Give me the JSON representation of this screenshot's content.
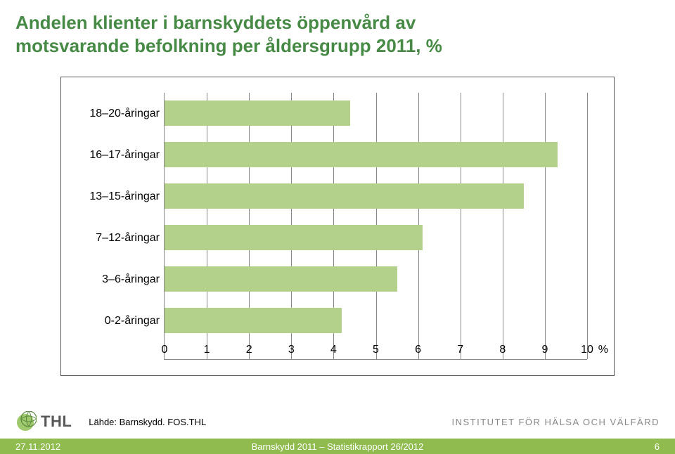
{
  "title_line1": "Andelen klienter i barnskyddets öppenvård av",
  "title_line2": "motsvarande befolkning per åldersgrupp 2011, %",
  "chart": {
    "type": "bar-horizontal",
    "categories": [
      "18–20-åringar",
      "16–17-åringar",
      "13–15-åringar",
      "7–12-åringar",
      "3–6-åringar",
      "0-2-åringar"
    ],
    "values": [
      4.4,
      9.3,
      8.5,
      6.1,
      5.5,
      4.2
    ],
    "xlim": [
      0,
      10
    ],
    "xtick_step": 1,
    "xticks": [
      "0",
      "1",
      "2",
      "3",
      "4",
      "5",
      "6",
      "7",
      "8",
      "9",
      "10"
    ],
    "xunit": "%",
    "bar_color": "#b3d18a",
    "grid_color": "#888888",
    "border_color": "#555555",
    "label_fontsize": 16,
    "background_color": "#ffffff"
  },
  "logo_text": "THL",
  "source": "Lähde: Barnskydd. FOS.THL",
  "institute": "INSTITUTET FÖR HÄLSA OCH VÄLFÄRD",
  "footer": {
    "date": "27.11.2012",
    "title": "Barnskydd 2011 – Statistikrapport 26/2012",
    "page": "6",
    "bg_color": "#8fbb4f"
  }
}
